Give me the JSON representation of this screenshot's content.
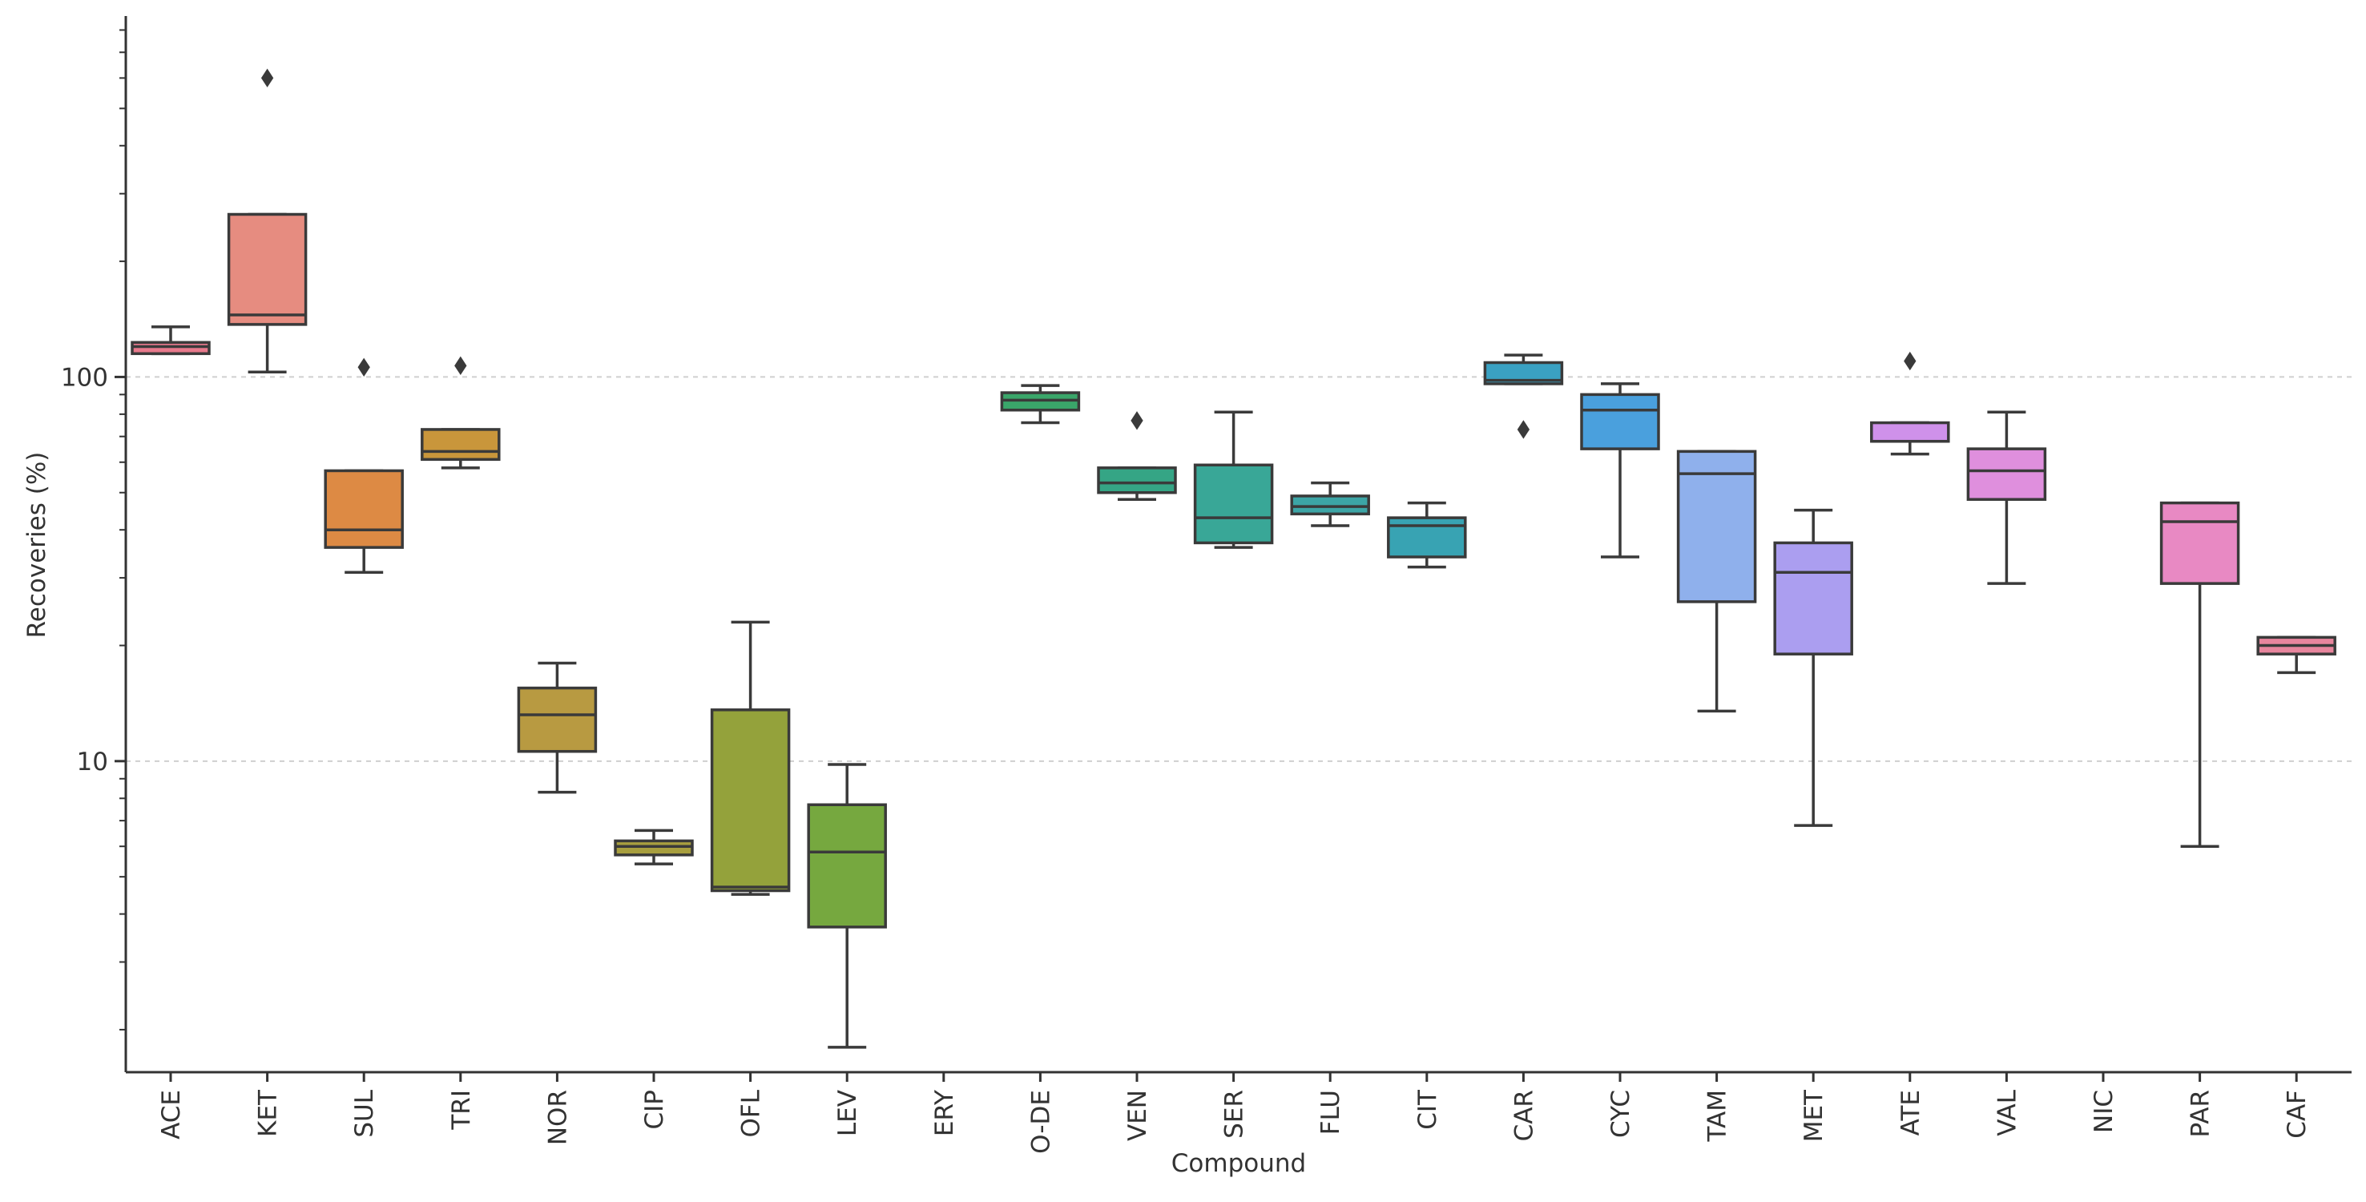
{
  "chart_data": {
    "type": "box",
    "title": "",
    "xlabel": "Compound",
    "ylabel": "Recoveries (%)",
    "y_scale": "log",
    "ylim": [
      1.55,
      870
    ],
    "y_ticks": [
      {
        "value": 10,
        "label": "10"
      },
      {
        "value": 100,
        "label": "100"
      }
    ],
    "y_minor_ticks": [
      2,
      3,
      4,
      5,
      6,
      7,
      8,
      9,
      20,
      30,
      40,
      50,
      60,
      70,
      80,
      90,
      200,
      300,
      400,
      500,
      600,
      700,
      800
    ],
    "grid": "horizontal dashed at major ticks",
    "categories": [
      "ACE",
      "KET",
      "SUL",
      "TRI",
      "NOR",
      "CIP",
      "OFL",
      "LEV",
      "ERY",
      "O-DE",
      "VEN",
      "SER",
      "FLU",
      "CIT",
      "CAR",
      "CYC",
      "TAM",
      "MET",
      "ATE",
      "VAL",
      "NIC",
      "PAR",
      "CAF"
    ],
    "boxes": [
      {
        "label": "ACE",
        "color": "#e8798c",
        "whisker_low": 115,
        "q1": 115,
        "median": 120,
        "q3": 123,
        "whisker_high": 135,
        "outliers": []
      },
      {
        "label": "KET",
        "color": "#e68c80",
        "whisker_low": 103,
        "q1": 137,
        "median": 145,
        "q3": 265,
        "whisker_high": 265,
        "outliers": [
          600
        ]
      },
      {
        "label": "SUL",
        "color": "#dd8a44",
        "whisker_low": 31,
        "q1": 36,
        "median": 40,
        "q3": 57,
        "whisker_high": 57,
        "outliers": [
          106
        ]
      },
      {
        "label": "TRI",
        "color": "#c9963b",
        "whisker_low": 58,
        "q1": 61,
        "median": 64,
        "q3": 73,
        "whisker_high": 73,
        "outliers": [
          107
        ]
      },
      {
        "label": "NOR",
        "color": "#b89a41",
        "whisker_low": 8.3,
        "q1": 10.6,
        "median": 13.2,
        "q3": 15.5,
        "whisker_high": 18,
        "outliers": []
      },
      {
        "label": "CIP",
        "color": "#a89f3f",
        "whisker_low": 5.4,
        "q1": 5.7,
        "median": 6.0,
        "q3": 6.2,
        "whisker_high": 6.6,
        "outliers": []
      },
      {
        "label": "OFL",
        "color": "#94a23b",
        "whisker_low": 4.5,
        "q1": 4.6,
        "median": 4.7,
        "q3": 13.6,
        "whisker_high": 23,
        "outliers": []
      },
      {
        "label": "LEV",
        "color": "#76a83f",
        "whisker_low": 1.8,
        "q1": 3.7,
        "median": 5.8,
        "q3": 7.7,
        "whisker_high": 9.8,
        "outliers": []
      },
      {
        "label": "ERY",
        "color": "#4fad5b",
        "empty": true
      },
      {
        "label": "O-DE",
        "color": "#3aa66a",
        "whisker_low": 76,
        "q1": 82,
        "median": 87,
        "q3": 91,
        "whisker_high": 95,
        "outliers": []
      },
      {
        "label": "VEN",
        "color": "#35a585",
        "whisker_low": 48,
        "q1": 50,
        "median": 53,
        "q3": 58,
        "whisker_high": 58,
        "outliers": [
          77
        ]
      },
      {
        "label": "SER",
        "color": "#39a797",
        "whisker_low": 36,
        "q1": 37,
        "median": 43,
        "q3": 59,
        "whisker_high": 81,
        "outliers": []
      },
      {
        "label": "FLU",
        "color": "#3ca5a6",
        "whisker_low": 41,
        "q1": 44,
        "median": 46,
        "q3": 49,
        "whisker_high": 53,
        "outliers": []
      },
      {
        "label": "CIT",
        "color": "#38a3b3",
        "whisker_low": 32,
        "q1": 34,
        "median": 41,
        "q3": 43,
        "whisker_high": 47,
        "outliers": []
      },
      {
        "label": "CAR",
        "color": "#3aa1c2",
        "whisker_low": 96,
        "q1": 96,
        "median": 98,
        "q3": 109,
        "whisker_high": 114,
        "outliers": [
          73
        ]
      },
      {
        "label": "CYC",
        "color": "#4aa0dd",
        "whisker_low": 34,
        "q1": 65,
        "median": 82,
        "q3": 90,
        "whisker_high": 96,
        "outliers": []
      },
      {
        "label": "TAM",
        "color": "#8fb0ec",
        "whisker_low": 13.5,
        "q1": 26,
        "median": 56,
        "q3": 64,
        "whisker_high": 64,
        "outliers": []
      },
      {
        "label": "MET",
        "color": "#ab9ef0",
        "whisker_low": 6.8,
        "q1": 19,
        "median": 31,
        "q3": 37,
        "whisker_high": 45,
        "outliers": []
      },
      {
        "label": "ATE",
        "color": "#cf91ea",
        "whisker_low": 63,
        "q1": 68,
        "median": 68,
        "q3": 76,
        "whisker_high": 76,
        "outliers": [
          110
        ]
      },
      {
        "label": "VAL",
        "color": "#df8fdd",
        "whisker_low": 29,
        "q1": 48,
        "median": 57,
        "q3": 65,
        "whisker_high": 81,
        "outliers": []
      },
      {
        "label": "NIC",
        "color": "#e68ad0",
        "empty": true
      },
      {
        "label": "PAR",
        "color": "#e889c3",
        "whisker_low": 6.0,
        "q1": 29,
        "median": 42,
        "q3": 47,
        "whisker_high": 47,
        "outliers": []
      },
      {
        "label": "CAF",
        "color": "#e8859d",
        "whisker_low": 17,
        "q1": 19,
        "median": 20,
        "q3": 21,
        "whisker_high": 21,
        "outliers": []
      }
    ]
  }
}
